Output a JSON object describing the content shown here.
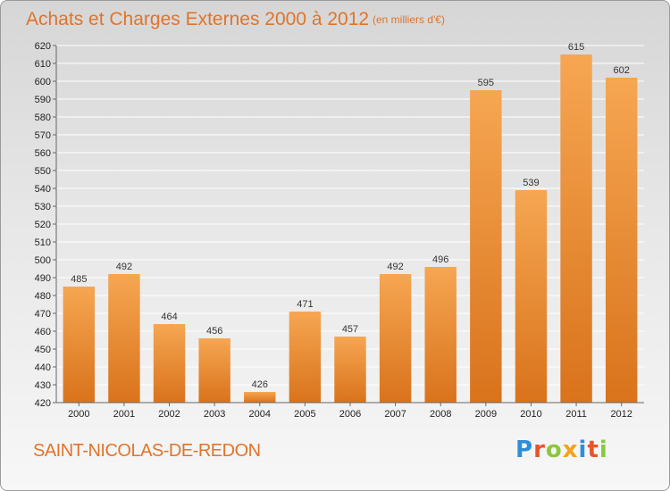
{
  "chart_data": {
    "type": "bar",
    "title": "Achats et Charges Externes 2000 à 2012",
    "subtitle": "(en milliers d'€)",
    "categories": [
      "2000",
      "2001",
      "2002",
      "2003",
      "2004",
      "2005",
      "2006",
      "2007",
      "2008",
      "2009",
      "2010",
      "2011",
      "2012"
    ],
    "values": [
      485,
      492,
      464,
      456,
      426,
      471,
      457,
      492,
      496,
      595,
      539,
      615,
      602
    ],
    "ylim": [
      420,
      620
    ],
    "ytick_step": 10,
    "grid": true,
    "bar_color_top": "#f6a652",
    "bar_color_bottom": "#d9731c"
  },
  "footer": {
    "city": "SAINT-NICOLAS-DE-REDON",
    "logo_letters": [
      {
        "char": "P",
        "color": "#2f8ed8"
      },
      {
        "char": "r",
        "color": "#e8542a"
      },
      {
        "char": "o",
        "color": "#8cc63f"
      },
      {
        "char": "x",
        "color": "#f4a21e"
      },
      {
        "char": "i",
        "color": "#2f8ed8"
      },
      {
        "char": "t",
        "color": "#e8542a"
      },
      {
        "char": "i",
        "color": "#8cc63f"
      }
    ]
  }
}
